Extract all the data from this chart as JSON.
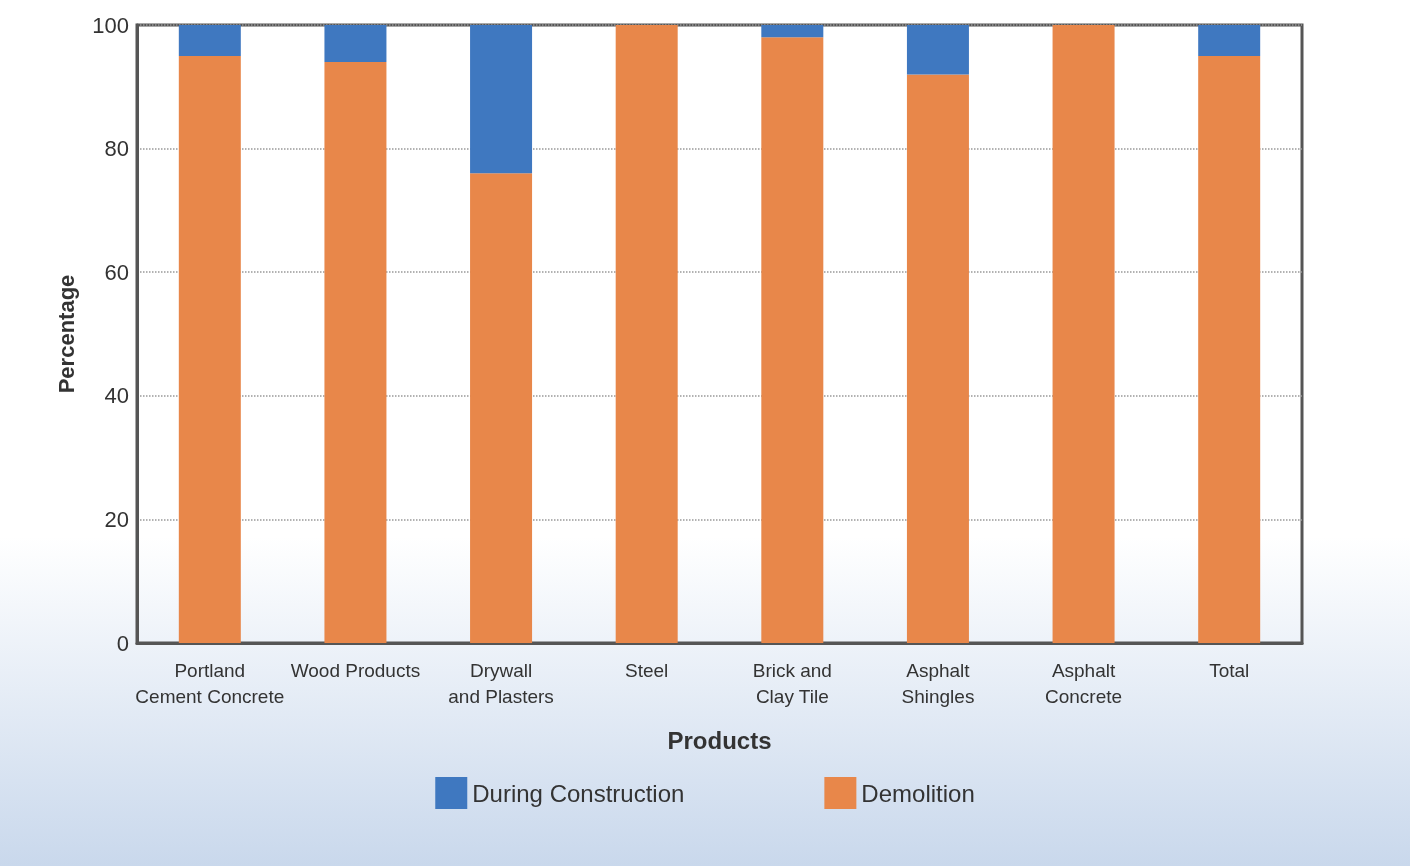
{
  "chart_data": {
    "type": "bar",
    "xlabel": "Products",
    "ylabel": "Percentage",
    "categories": [
      "Portland\nCement Concrete",
      "Wood Products",
      "Drywall\nand Plasters",
      "Steel",
      "Brick and\nClay Tile",
      "Asphalt\nShingles",
      "Asphalt\nConcrete",
      "Total"
    ],
    "stacked": true,
    "series": [
      {
        "name": "Demolition",
        "color": "#e8874a",
        "values": [
          95,
          94,
          76,
          100,
          98,
          92,
          100,
          95
        ]
      },
      {
        "name": "During Construction",
        "color": "#3f78c0",
        "values": [
          5,
          6,
          24,
          0,
          2,
          8,
          0,
          5
        ]
      }
    ],
    "ylim": [
      0,
      100
    ],
    "yticks": [
      0,
      20,
      40,
      60,
      80,
      100
    ],
    "grid": "y",
    "legend": "bottom"
  }
}
